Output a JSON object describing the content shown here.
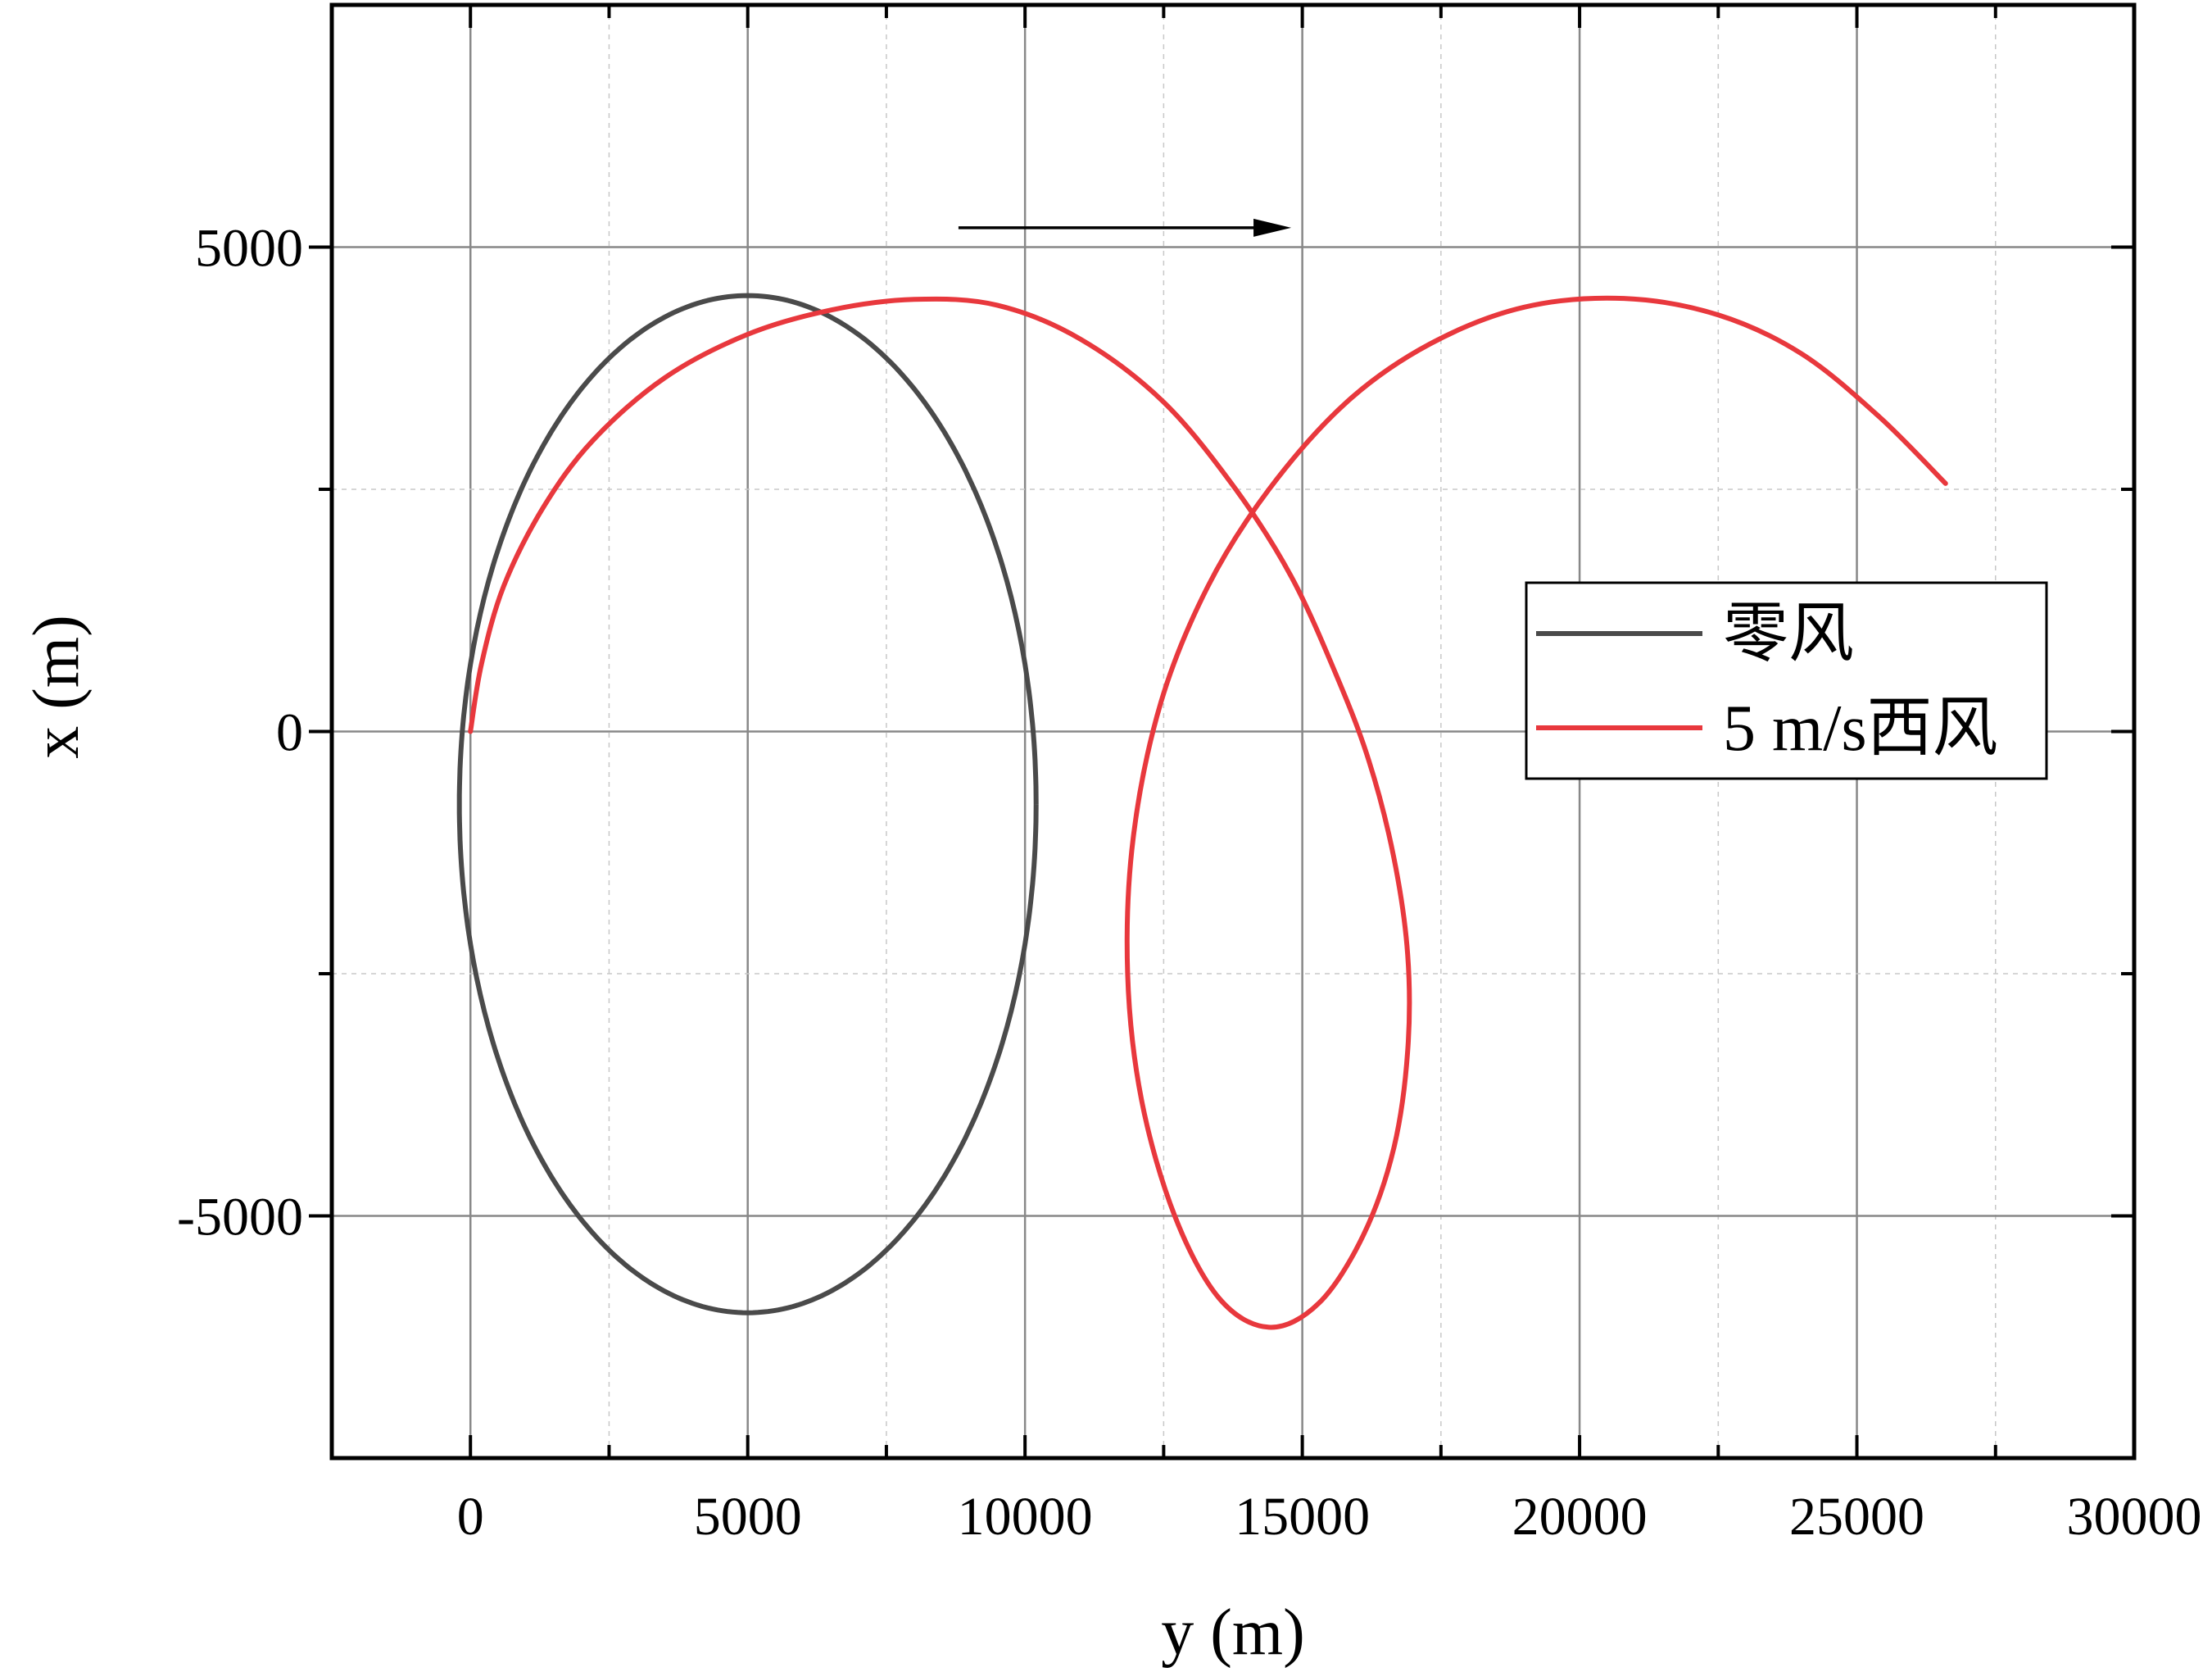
{
  "chart_data": {
    "type": "line",
    "xlabel": "y (m)",
    "ylabel": "x (m)",
    "xlim": [
      -2500,
      30000
    ],
    "ylim": [
      -7500,
      7500
    ],
    "xticks": [
      0,
      5000,
      10000,
      15000,
      20000,
      25000,
      30000
    ],
    "xtick_labels": [
      "0",
      "5000",
      "10000",
      "15000",
      "20000",
      "25000",
      "30000"
    ],
    "yticks": [
      -5000,
      0,
      5000
    ],
    "ytick_labels": [
      "-5000",
      "0",
      "5000"
    ],
    "grid": true,
    "legend_position": "right",
    "annotation": "arrow pointing in +y direction (wind direction)",
    "arrow": {
      "from": [
        8800,
        5200
      ],
      "to": [
        14800,
        5200
      ]
    },
    "series": [
      {
        "name": "零风",
        "color": "#4a4a4a",
        "center": [
          5000,
          -750
        ],
        "radius_y": 5200,
        "radius_x": 5250,
        "note": "closed loop through origin; y range approx -250 to 10300, x range approx -6100 to 4450"
      },
      {
        "name": "5 m/s西风",
        "color": "#e8383d",
        "points": [
          [
            0,
            0
          ],
          [
            200,
            700
          ],
          [
            600,
            1500
          ],
          [
            1300,
            2300
          ],
          [
            2200,
            3000
          ],
          [
            3500,
            3650
          ],
          [
            5000,
            4100
          ],
          [
            6500,
            4350
          ],
          [
            8000,
            4460
          ],
          [
            9500,
            4400
          ],
          [
            11000,
            4050
          ],
          [
            12500,
            3400
          ],
          [
            13800,
            2500
          ],
          [
            14800,
            1600
          ],
          [
            15600,
            600
          ],
          [
            16200,
            -300
          ],
          [
            16650,
            -1300
          ],
          [
            16900,
            -2300
          ],
          [
            16900,
            -3300
          ],
          [
            16650,
            -4300
          ],
          [
            16100,
            -5200
          ],
          [
            15300,
            -5900
          ],
          [
            14400,
            -6150
          ],
          [
            13500,
            -5850
          ],
          [
            12700,
            -5000
          ],
          [
            12100,
            -3800
          ],
          [
            11850,
            -2500
          ],
          [
            11950,
            -1100
          ],
          [
            12450,
            300
          ],
          [
            13300,
            1500
          ],
          [
            14400,
            2500
          ],
          [
            15800,
            3400
          ],
          [
            17300,
            4000
          ],
          [
            19000,
            4380
          ],
          [
            20800,
            4470
          ],
          [
            22500,
            4300
          ],
          [
            24000,
            3900
          ],
          [
            25400,
            3250
          ],
          [
            26600,
            2560
          ]
        ]
      }
    ]
  }
}
